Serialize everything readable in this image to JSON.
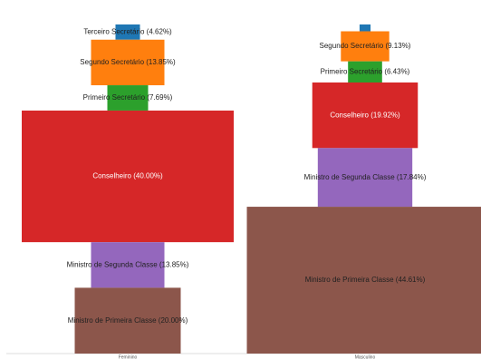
{
  "chart_data": [
    {
      "type": "funnel",
      "x_label": "Feminino",
      "labels": [
        "Terceiro Secretário (4.62%)",
        "Segundo Secretário (13.85%)",
        "Primeiro Secretário (7.69%)",
        "Conselheiro (40.00%)",
        "Ministro de Segunda Classe (13.85%)",
        "Ministro de Primeira Classe (20.00%)"
      ],
      "values": [
        4.62,
        13.85,
        7.69,
        40.0,
        13.85,
        20.0
      ],
      "colors": [
        "#1f77b4",
        "#ff7f0e",
        "#2ca02c",
        "#d62728",
        "#9467bd",
        "#8c564b"
      ]
    },
    {
      "type": "funnel",
      "x_label": "Masculino",
      "labels": [
        null,
        "Segundo Secretário (9.13%)",
        "Primeiro Secretário (6.43%)",
        "Conselheiro (19.92%)",
        "Ministro de Segunda Classe (17.84%)",
        "Ministro de Primeira Classe (44.61%)"
      ],
      "values": [
        2.07,
        9.13,
        6.43,
        19.92,
        17.84,
        44.61
      ],
      "colors": [
        "#1f77b4",
        "#ff7f0e",
        "#2ca02c",
        "#d62728",
        "#9467bd",
        "#8c564b"
      ]
    }
  ]
}
